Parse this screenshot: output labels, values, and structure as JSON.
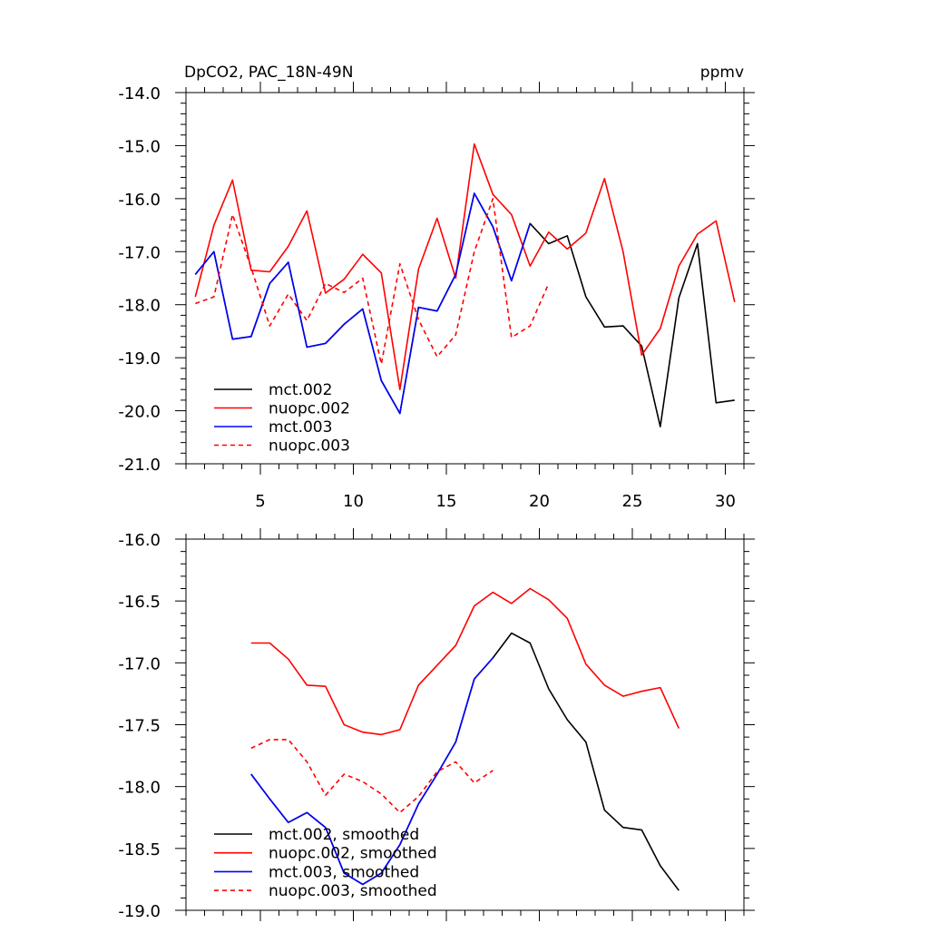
{
  "chart_data": [
    {
      "type": "line",
      "title": "DpCO2, PAC_18N-49N",
      "units_label": "ppmv",
      "xlabel": "",
      "ylabel": "",
      "xlim": [
        1,
        31
      ],
      "ylim": [
        -21.0,
        -14.0
      ],
      "xticks": [
        5,
        10,
        15,
        20,
        25,
        30
      ],
      "xtick_labels": [
        "5",
        "10",
        "15",
        "20",
        "25",
        "30"
      ],
      "yticks": [
        -14.0,
        -15.0,
        -16.0,
        -17.0,
        -18.0,
        -19.0,
        -20.0,
        -21.0
      ],
      "ytick_labels": [
        "-14.0",
        "-15.0",
        "-16.0",
        "-17.0",
        "-18.0",
        "-19.0",
        "-20.0",
        "-21.0"
      ],
      "grid": false,
      "legend": "bottom-left",
      "series": [
        {
          "name": "mct.002",
          "color": "#000000",
          "dash": "solid",
          "x": [
            1.5,
            2.5,
            3.5,
            4.5,
            5.5,
            6.5,
            7.5,
            8.5,
            9.5,
            10.5,
            11.5,
            12.5,
            13.5,
            14.5,
            15.5,
            16.5,
            17.5,
            18.5,
            19.5,
            20.5,
            21.5,
            22.5,
            23.5,
            24.5,
            25.5,
            26.5,
            27.5,
            28.5,
            29.5,
            30.5
          ],
          "values": [
            -17.43,
            -17.0,
            -18.65,
            -18.6,
            -17.6,
            -17.2,
            -18.8,
            -18.73,
            -18.37,
            -18.08,
            -19.43,
            -20.05,
            -18.05,
            -18.12,
            -17.43,
            -15.9,
            -16.53,
            -17.55,
            -16.47,
            -16.85,
            -16.7,
            -17.85,
            -18.42,
            -18.4,
            -18.78,
            -20.3,
            -17.87,
            -16.85,
            -19.85,
            -19.8
          ]
        },
        {
          "name": "nuopc.002",
          "color": "#ff0000",
          "dash": "solid",
          "x": [
            1.5,
            2.5,
            3.5,
            4.5,
            5.5,
            6.5,
            7.5,
            8.5,
            9.5,
            10.5,
            11.5,
            12.5,
            13.5,
            14.5,
            15.5,
            16.5,
            17.5,
            18.5,
            19.5,
            20.5,
            21.5,
            22.5,
            23.5,
            24.5,
            25.5,
            26.5,
            27.5,
            28.5,
            29.5,
            30.5
          ],
          "values": [
            -17.85,
            -16.5,
            -15.65,
            -17.35,
            -17.38,
            -16.9,
            -16.23,
            -17.78,
            -17.52,
            -17.05,
            -17.4,
            -19.6,
            -17.33,
            -16.37,
            -17.5,
            -14.97,
            -15.92,
            -16.3,
            -17.27,
            -16.63,
            -16.95,
            -16.65,
            -15.62,
            -17.0,
            -18.95,
            -18.45,
            -17.27,
            -16.67,
            -16.42,
            -17.95
          ]
        },
        {
          "name": "mct.003",
          "color": "#0000ff",
          "dash": "solid",
          "x": [
            1.5,
            2.5,
            3.5,
            4.5,
            5.5,
            6.5,
            7.5,
            8.5,
            9.5,
            10.5,
            11.5,
            12.5,
            13.5,
            14.5,
            15.5,
            16.5,
            17.5,
            18.5,
            19.5
          ],
          "values": [
            -17.43,
            -17.0,
            -18.65,
            -18.6,
            -17.6,
            -17.2,
            -18.8,
            -18.73,
            -18.37,
            -18.08,
            -19.43,
            -20.05,
            -18.05,
            -18.12,
            -17.43,
            -15.9,
            -16.53,
            -17.55,
            -16.47
          ]
        },
        {
          "name": "nuopc.003",
          "color": "#ff0000",
          "dash": "dashed",
          "x": [
            1.5,
            2.5,
            3.5,
            4.5,
            5.5,
            6.5,
            7.5,
            8.5,
            9.5,
            10.5,
            11.5,
            12.5,
            13.5,
            14.5,
            15.5,
            16.5,
            17.5,
            18.5,
            19.5,
            20.5
          ],
          "values": [
            -17.98,
            -17.85,
            -16.3,
            -17.3,
            -18.4,
            -17.8,
            -18.3,
            -17.6,
            -17.77,
            -17.5,
            -19.12,
            -17.23,
            -18.28,
            -18.98,
            -18.57,
            -17.0,
            -16.0,
            -18.62,
            -18.4,
            -17.6
          ]
        }
      ]
    },
    {
      "type": "line",
      "title": "",
      "xlabel": "",
      "ylabel": "",
      "xlim": [
        1,
        31
      ],
      "ylim": [
        -19.0,
        -16.0
      ],
      "xticks": [
        5,
        10,
        15,
        20,
        25,
        30
      ],
      "yticks": [
        -16.0,
        -16.5,
        -17.0,
        -17.5,
        -18.0,
        -18.5,
        -19.0
      ],
      "ytick_labels": [
        "-16.0",
        "-16.5",
        "-17.0",
        "-17.5",
        "-18.0",
        "-18.5",
        "-19.0"
      ],
      "grid": false,
      "legend": "bottom-left",
      "series": [
        {
          "name": "mct.002, smoothed",
          "color": "#000000",
          "dash": "solid",
          "x": [
            4.5,
            5.5,
            6.5,
            7.5,
            8.5,
            9.5,
            10.5,
            11.5,
            12.5,
            13.5,
            14.5,
            15.5,
            16.5,
            17.5,
            18.5,
            19.5,
            20.5,
            21.5,
            22.5,
            23.5,
            24.5,
            25.5,
            26.5,
            27.5
          ],
          "values": [
            -17.9,
            -18.1,
            -18.29,
            -18.21,
            -18.33,
            -18.7,
            -18.79,
            -18.7,
            -18.47,
            -18.14,
            -17.9,
            -17.64,
            -17.13,
            -16.96,
            -16.76,
            -16.84,
            -17.21,
            -17.46,
            -17.64,
            -18.19,
            -18.33,
            -18.35,
            -18.64,
            -18.84
          ]
        },
        {
          "name": "nuopc.002, smoothed",
          "color": "#ff0000",
          "dash": "solid",
          "x": [
            4.5,
            5.5,
            6.5,
            7.5,
            8.5,
            9.5,
            10.5,
            11.5,
            12.5,
            13.5,
            14.5,
            15.5,
            16.5,
            17.5,
            18.5,
            19.5,
            20.5,
            21.5,
            22.5,
            23.5,
            24.5,
            25.5,
            26.5,
            27.5
          ],
          "values": [
            -16.84,
            -16.84,
            -16.97,
            -17.18,
            -17.19,
            -17.5,
            -17.56,
            -17.58,
            -17.54,
            -17.18,
            -17.02,
            -16.86,
            -16.54,
            -16.43,
            -16.52,
            -16.4,
            -16.49,
            -16.64,
            -17.01,
            -17.18,
            -17.27,
            -17.23,
            -17.2,
            -17.53
          ]
        },
        {
          "name": "mct.003, smoothed",
          "color": "#0000ff",
          "dash": "solid",
          "x": [
            4.5,
            5.5,
            6.5,
            7.5,
            8.5,
            9.5,
            10.5,
            11.5,
            12.5,
            13.5,
            14.5,
            15.5,
            16.5,
            17.5
          ],
          "values": [
            -17.9,
            -18.1,
            -18.29,
            -18.21,
            -18.33,
            -18.7,
            -18.79,
            -18.7,
            -18.47,
            -18.14,
            -17.9,
            -17.64,
            -17.13,
            -16.96
          ]
        },
        {
          "name": "nuopc.003, smoothed",
          "color": "#ff0000",
          "dash": "dashed",
          "x": [
            4.5,
            5.5,
            6.5,
            7.5,
            8.5,
            9.5,
            10.5,
            11.5,
            12.5,
            13.5,
            14.5,
            15.5,
            16.5,
            17.5
          ],
          "values": [
            -17.69,
            -17.62,
            -17.62,
            -17.8,
            -18.07,
            -17.9,
            -17.96,
            -18.06,
            -18.21,
            -18.08,
            -17.88,
            -17.8,
            -17.97,
            -17.87
          ]
        }
      ]
    }
  ]
}
